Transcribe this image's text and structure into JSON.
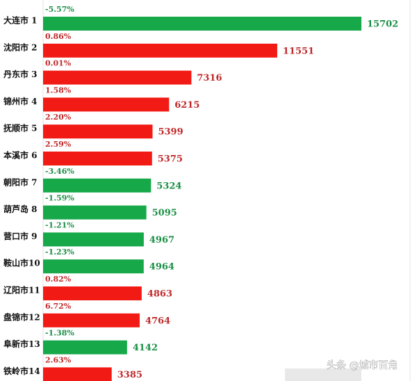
{
  "chart_data": {
    "type": "bar",
    "categories": [
      "大连市 1",
      "沈阳市 2",
      "丹东市 3",
      "锦州市 4",
      "抚顺市 5",
      "本溪市 6",
      "朝阳市 7",
      "葫芦岛 8",
      "营口市 9",
      "鞍山市10",
      "辽阳市11",
      "盘锦市12",
      "阜新市13",
      "铁岭市14"
    ],
    "values": [
      15702,
      11551,
      7316,
      6215,
      5399,
      5375,
      5324,
      5095,
      4967,
      4964,
      4863,
      4764,
      4142,
      3385
    ],
    "growth": {
      "values": [
        -5.57,
        0.86,
        0.01,
        1.58,
        2.2,
        2.59,
        -3.46,
        -1.59,
        -1.21,
        -1.23,
        0.82,
        6.72,
        -1.38,
        2.63
      ],
      "value_labels": [
        "-5.57%",
        "0.86%",
        "0.01%",
        "1.58%",
        "2.20%",
        "2.59%",
        "-3.46%",
        "-1.59%",
        "-1.21%",
        "-1.23%",
        "0.82%",
        "6.72%",
        "-1.38%",
        "2.63%"
      ]
    },
    "colors": {
      "negative": "#16a849",
      "positive": "#f21a14",
      "negative_text": "#1a8f45",
      "positive_text": "#c0282a"
    }
  },
  "watermark": "头条 @城市百角"
}
